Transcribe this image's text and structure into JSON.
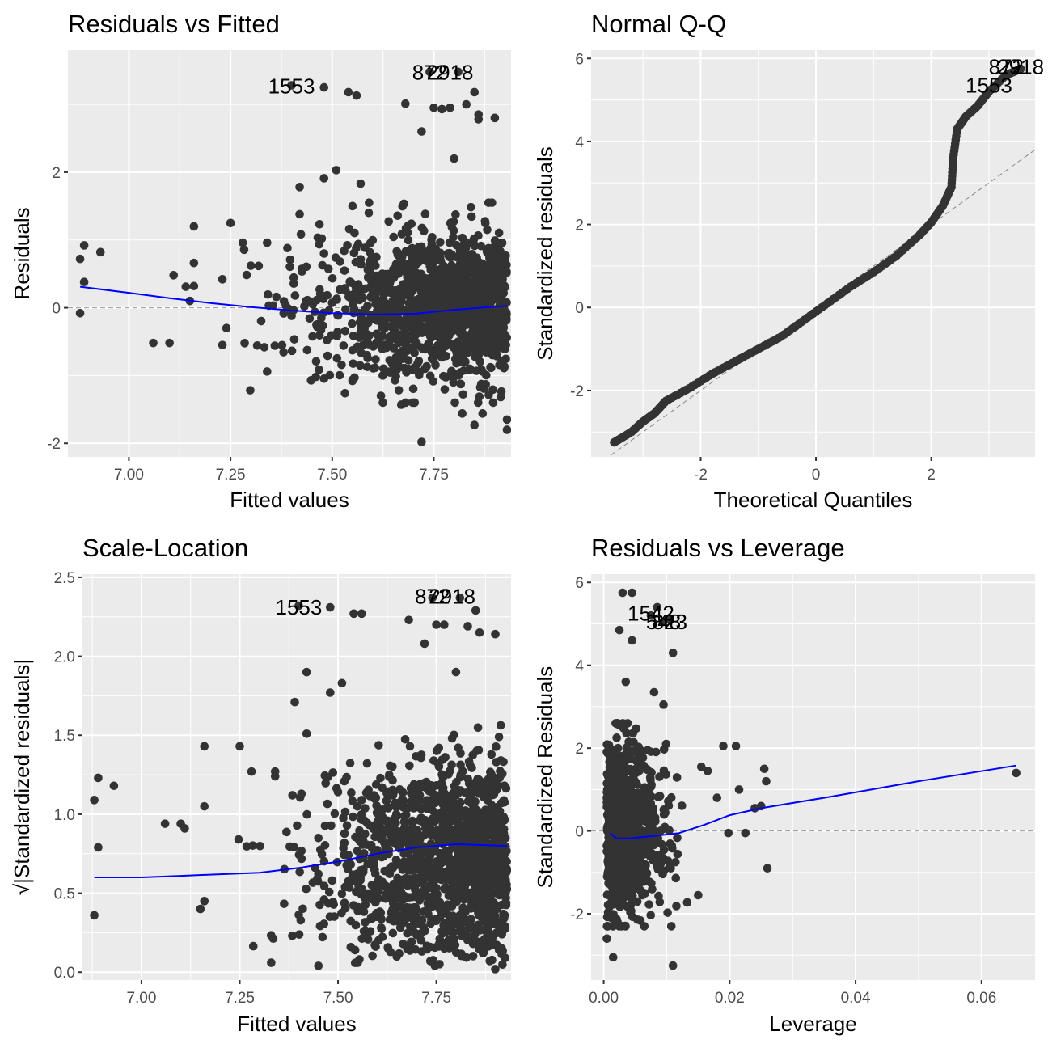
{
  "chart_data": [
    {
      "type": "scatter",
      "title": "Residuals vs Fitted",
      "xlabel": "Fitted values",
      "ylabel": "Residuals",
      "xlim": [
        6.85,
        7.94
      ],
      "ylim": [
        -2.2,
        3.8
      ],
      "xticks": [
        7.0,
        7.25,
        7.5,
        7.75
      ],
      "xtick_labels": [
        "7.00",
        "7.25",
        "7.50",
        "7.75"
      ],
      "yticks": [
        -2,
        0,
        2
      ],
      "ytick_labels": [
        "-2",
        "0",
        "2"
      ],
      "reference_line": {
        "y": 0,
        "style": "dashed"
      },
      "smooth": {
        "x": [
          6.88,
          7.0,
          7.1,
          7.2,
          7.3,
          7.4,
          7.5,
          7.6,
          7.7,
          7.8,
          7.93
        ],
        "y": [
          0.31,
          0.22,
          0.14,
          0.07,
          0.01,
          -0.04,
          -0.08,
          -0.1,
          -0.09,
          -0.03,
          0.03
        ]
      },
      "annotations": [
        {
          "text": "1553",
          "x": 7.4,
          "y": 3.27
        },
        {
          "text": "872",
          "x": 7.74,
          "y": 3.47
        },
        {
          "text": "2918",
          "x": 7.79,
          "y": 3.47
        }
      ],
      "points": [
        [
          6.88,
          0.72
        ],
        [
          6.89,
          0.92
        ],
        [
          6.89,
          0.38
        ],
        [
          6.88,
          -0.08
        ],
        [
          6.93,
          0.82
        ],
        [
          7.06,
          -0.52
        ],
        [
          7.1,
          -0.52
        ],
        [
          7.11,
          0.48
        ],
        [
          7.14,
          0.31
        ],
        [
          7.15,
          0.1
        ],
        [
          7.16,
          0.66
        ],
        [
          7.16,
          1.2
        ],
        [
          7.16,
          0.32
        ],
        [
          7.23,
          0.42
        ],
        [
          7.23,
          -0.55
        ],
        [
          7.24,
          -0.3
        ],
        [
          7.25,
          1.25
        ],
        [
          7.28,
          0.96
        ],
        [
          7.3,
          0.62
        ],
        [
          7.34,
          0.96
        ],
        [
          7.34,
          -0.94
        ],
        [
          7.39,
          0.88
        ],
        [
          7.42,
          1.78
        ],
        [
          7.42,
          1.38
        ],
        [
          7.48,
          1.91
        ],
        [
          7.51,
          2.03
        ],
        [
          7.48,
          0.8
        ],
        [
          7.55,
          1.5
        ],
        [
          7.57,
          1.83
        ],
        [
          7.59,
          1.4
        ],
        [
          7.4,
          3.28
        ],
        [
          7.48,
          3.25
        ],
        [
          7.54,
          3.18
        ],
        [
          7.56,
          3.13
        ],
        [
          7.68,
          3.01
        ],
        [
          7.72,
          2.6
        ],
        [
          7.75,
          2.95
        ],
        [
          7.77,
          2.93
        ],
        [
          7.79,
          2.95
        ],
        [
          7.8,
          2.2
        ],
        [
          7.83,
          3.0
        ],
        [
          7.85,
          3.18
        ],
        [
          7.86,
          2.78
        ],
        [
          7.86,
          2.85
        ],
        [
          7.9,
          2.8
        ],
        [
          7.74,
          3.48
        ],
        [
          7.81,
          3.48
        ],
        [
          7.72,
          -1.98
        ],
        [
          7.85,
          -1.73
        ],
        [
          7.82,
          -1.56
        ],
        [
          7.87,
          -1.56
        ],
        [
          7.93,
          -1.8
        ],
        [
          7.93,
          -1.65
        ],
        [
          7.55,
          -1.08
        ],
        [
          7.67,
          -1.43
        ],
        [
          7.46,
          -1.02
        ],
        [
          7.62,
          -1.3
        ]
      ]
    },
    {
      "type": "scatter",
      "title": "Normal Q-Q",
      "xlabel": "Theoretical Quantiles",
      "ylabel": "Standardized residuals",
      "xlim": [
        -3.9,
        3.8
      ],
      "ylim": [
        -3.6,
        6.2
      ],
      "xticks": [
        -2,
        0,
        2
      ],
      "xtick_labels": [
        "-2",
        "0",
        "2"
      ],
      "yticks": [
        -2,
        0,
        2,
        4,
        6
      ],
      "ytick_labels": [
        "-2",
        "0",
        "2",
        "4",
        "6"
      ],
      "reference_line": {
        "intercept": 0,
        "slope": 1,
        "style": "dashed"
      },
      "annotations": [
        {
          "text": "872",
          "x": 3.3,
          "y": 5.8
        },
        {
          "text": "2918",
          "x": 3.55,
          "y": 5.8
        },
        {
          "text": "1553",
          "x": 3.0,
          "y": 5.35
        }
      ],
      "curve": {
        "x": [
          -3.5,
          -3.2,
          -3.0,
          -2.8,
          -2.6,
          -2.2,
          -1.8,
          -1.4,
          -1.0,
          -0.6,
          -0.2,
          0.2,
          0.6,
          1.0,
          1.4,
          1.8,
          2.0,
          2.2,
          2.35,
          2.38,
          2.45,
          2.6,
          2.8,
          3.0,
          3.3,
          3.55
        ],
        "y": [
          -3.25,
          -3.0,
          -2.75,
          -2.55,
          -2.25,
          -1.95,
          -1.6,
          -1.3,
          -1.0,
          -0.7,
          -0.3,
          0.1,
          0.5,
          0.85,
          1.25,
          1.75,
          2.05,
          2.45,
          2.9,
          3.6,
          4.3,
          4.6,
          4.85,
          5.2,
          5.6,
          5.75
        ]
      }
    },
    {
      "type": "scatter",
      "title": "Scale-Location",
      "xlabel": "Fitted values",
      "ylabel": "√|Standardized residuals|",
      "xlim": [
        6.85,
        7.94
      ],
      "ylim": [
        -0.05,
        2.52
      ],
      "xticks": [
        7.0,
        7.25,
        7.5,
        7.75
      ],
      "xtick_labels": [
        "7.00",
        "7.25",
        "7.50",
        "7.75"
      ],
      "yticks": [
        0.0,
        0.5,
        1.0,
        1.5,
        2.0,
        2.5
      ],
      "ytick_labels": [
        "0.0",
        "0.5",
        "1.0",
        "1.5",
        "2.0",
        "2.5"
      ],
      "smooth": {
        "x": [
          6.88,
          7.0,
          7.1,
          7.2,
          7.3,
          7.4,
          7.5,
          7.6,
          7.7,
          7.8,
          7.93
        ],
        "y": [
          0.6,
          0.6,
          0.61,
          0.62,
          0.63,
          0.66,
          0.7,
          0.75,
          0.79,
          0.81,
          0.8
        ]
      },
      "annotations": [
        {
          "text": "1553",
          "x": 7.4,
          "y": 2.31
        },
        {
          "text": "872",
          "x": 7.74,
          "y": 2.38
        },
        {
          "text": "2918",
          "x": 7.79,
          "y": 2.38
        }
      ],
      "points": [
        [
          6.88,
          1.09
        ],
        [
          6.89,
          1.23
        ],
        [
          6.89,
          0.79
        ],
        [
          6.88,
          0.36
        ],
        [
          6.93,
          1.18
        ],
        [
          7.06,
          0.94
        ],
        [
          7.1,
          0.94
        ],
        [
          7.11,
          0.91
        ],
        [
          7.15,
          0.4
        ],
        [
          7.16,
          0.45
        ],
        [
          7.16,
          1.05
        ],
        [
          7.16,
          1.43
        ],
        [
          7.25,
          1.43
        ],
        [
          7.28,
          1.27
        ],
        [
          7.34,
          1.27
        ],
        [
          7.34,
          1.24
        ],
        [
          7.39,
          1.71
        ],
        [
          7.42,
          1.51
        ],
        [
          7.42,
          1.9
        ],
        [
          7.48,
          1.77
        ],
        [
          7.51,
          1.83
        ],
        [
          7.4,
          2.32
        ],
        [
          7.48,
          2.31
        ],
        [
          7.54,
          2.27
        ],
        [
          7.56,
          2.27
        ],
        [
          7.68,
          2.23
        ],
        [
          7.72,
          2.08
        ],
        [
          7.75,
          2.2
        ],
        [
          7.77,
          2.2
        ],
        [
          7.8,
          1.9
        ],
        [
          7.83,
          2.19
        ],
        [
          7.85,
          2.29
        ],
        [
          7.86,
          2.15
        ],
        [
          7.9,
          2.14
        ],
        [
          7.74,
          2.37
        ],
        [
          7.81,
          2.37
        ],
        [
          7.33,
          0.06
        ],
        [
          7.45,
          0.04
        ],
        [
          7.55,
          0.06
        ]
      ]
    },
    {
      "type": "scatter",
      "title": "Residuals vs Leverage",
      "xlabel": "Leverage",
      "ylabel": "Standardized Residuals",
      "xlim": [
        -0.002,
        0.0685
      ],
      "ylim": [
        -3.6,
        6.2
      ],
      "xticks": [
        0.0,
        0.02,
        0.04,
        0.06
      ],
      "xtick_labels": [
        "0.00",
        "0.02",
        "0.04",
        "0.06"
      ],
      "yticks": [
        -2,
        0,
        2,
        4,
        6
      ],
      "ytick_labels": [
        "-2",
        "0",
        "2",
        "4",
        "6"
      ],
      "reference_line": {
        "y": 0,
        "style": "dashed"
      },
      "smooth": {
        "x": [
          0.001,
          0.002,
          0.004,
          0.008,
          0.012,
          0.016,
          0.02,
          0.025,
          0.035,
          0.05,
          0.0655
        ],
        "y": [
          -0.05,
          -0.18,
          -0.18,
          -0.12,
          -0.05,
          0.15,
          0.38,
          0.55,
          0.8,
          1.2,
          1.58
        ]
      },
      "annotations": [
        {
          "text": "1542",
          "x": 0.0075,
          "y": 5.25
        },
        {
          "text": "548",
          "x": 0.0095,
          "y": 5.05
        },
        {
          "text": "823",
          "x": 0.0105,
          "y": 5.05
        }
      ],
      "points": [
        [
          0.0655,
          1.4
        ],
        [
          0.0225,
          -0.05
        ],
        [
          0.024,
          0.55
        ],
        [
          0.025,
          0.6
        ],
        [
          0.0255,
          1.5
        ],
        [
          0.0258,
          1.2
        ],
        [
          0.026,
          -0.9
        ],
        [
          0.0198,
          -0.05
        ],
        [
          0.021,
          2.05
        ],
        [
          0.019,
          2.05
        ],
        [
          0.0215,
          1.0
        ],
        [
          0.018,
          0.8
        ],
        [
          0.0165,
          1.45
        ],
        [
          0.0155,
          1.55
        ],
        [
          0.015,
          -1.55
        ],
        [
          0.003,
          5.75
        ],
        [
          0.0045,
          5.75
        ],
        [
          0.0085,
          5.4
        ],
        [
          0.0075,
          5.2
        ],
        [
          0.0095,
          5.05
        ],
        [
          0.0105,
          5.1
        ],
        [
          0.011,
          4.3
        ],
        [
          0.0045,
          4.6
        ],
        [
          0.0025,
          4.85
        ],
        [
          0.0035,
          3.6
        ],
        [
          0.008,
          3.35
        ],
        [
          0.0095,
          3.05
        ],
        [
          0.011,
          -3.25
        ],
        [
          0.0015,
          -3.05
        ],
        [
          0.0005,
          -2.6
        ]
      ]
    }
  ]
}
